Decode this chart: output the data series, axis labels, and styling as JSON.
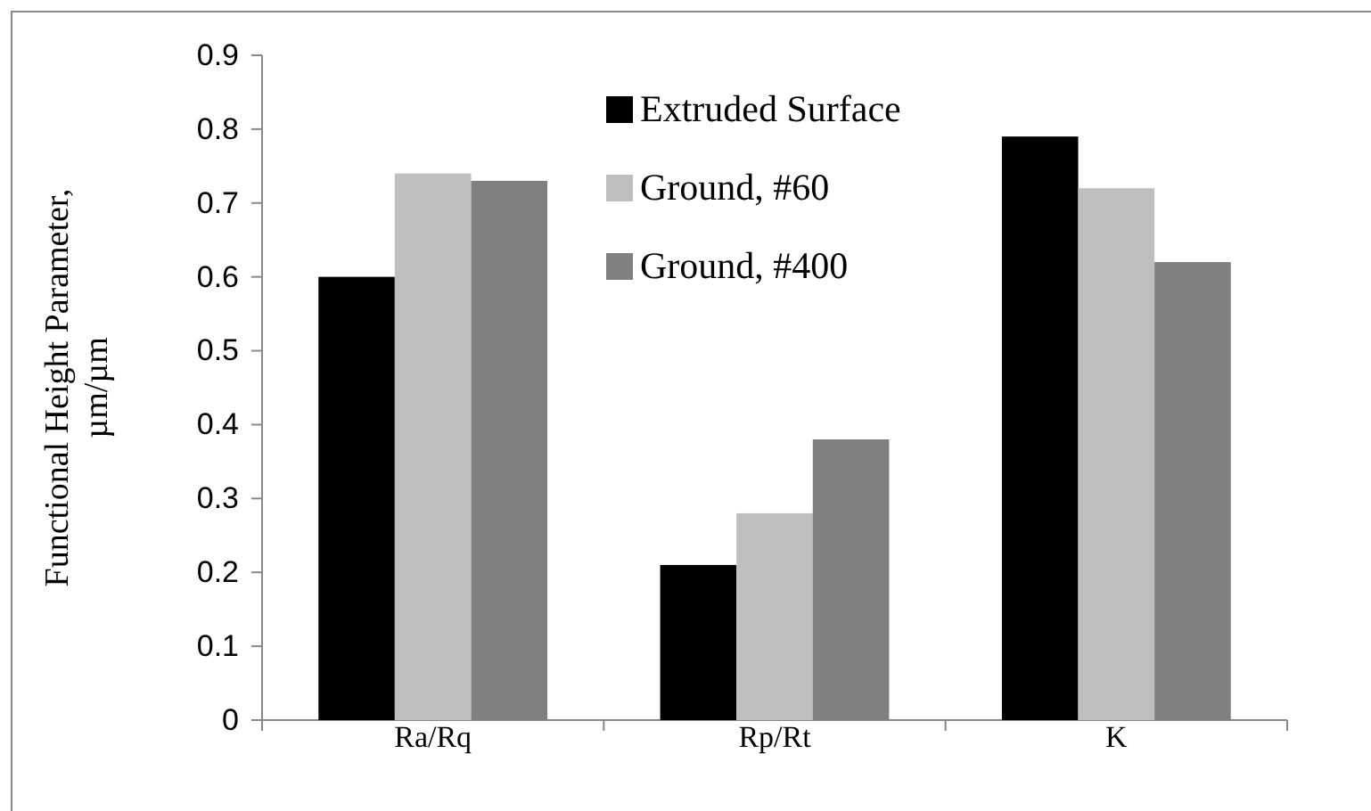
{
  "chart_data": {
    "type": "bar",
    "ylabel": "Functional Height Parameter, µm/µm",
    "categories": [
      "Ra/Rq",
      "Rp/Rt",
      "K"
    ],
    "series": [
      {
        "name": "Extruded Surface",
        "color": "#000000",
        "values": [
          0.6,
          0.21,
          0.79
        ]
      },
      {
        "name": "Ground, #60",
        "color": "#bfbfbf",
        "values": [
          0.74,
          0.28,
          0.72
        ]
      },
      {
        "name": "Ground, #400",
        "color": "#808080",
        "values": [
          0.73,
          0.38,
          0.62
        ]
      }
    ],
    "ylim": [
      0,
      0.9
    ],
    "yticks": [
      0,
      0.1,
      0.2,
      0.3,
      0.4,
      0.5,
      0.6,
      0.7,
      0.8,
      0.9
    ],
    "grid": false,
    "legend": "top"
  }
}
